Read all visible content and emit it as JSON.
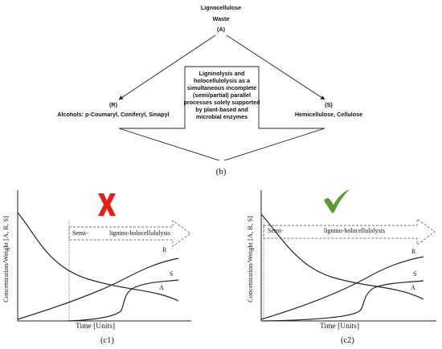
{
  "top": {
    "title_line1": "Lignocellulose",
    "title_line2": "Waste",
    "label_a": "(A)",
    "label_r": "(R)",
    "alcohols": "Alcohols: p-Coumaryl, Coniferyl, Sinapyl",
    "label_s": "(S)",
    "hemicellulose": "Hemicellulose, Cellulose",
    "center_lines": [
      "Ligninolysis and",
      "holocellulolysis as a",
      "simultaneous incomplete",
      "(semi/partial) parallel",
      "processes solely supported",
      "by plant-based and",
      "microbial enzymes"
    ],
    "caption": "(b)"
  },
  "panels": [
    {
      "id": "c1",
      "ylabel": "Concentration/Weight [A, R, S]",
      "xlabel": "Time [Units]",
      "caption": "(c1)",
      "marker": "cross-icon",
      "marker_color": "#e32119",
      "arrow_label_1": "Semi-",
      "arrow_label_2": "lignino-holocellulolysis",
      "curve_labels": [
        "R",
        "S",
        "A"
      ]
    },
    {
      "id": "c2",
      "ylabel": "Concentration/Weight [A, R, S]",
      "xlabel": "Time [Units]",
      "caption": "(c2)",
      "marker": "checkmark-icon",
      "marker_color": "#5a9b32",
      "arrow_label_1": "Semi-",
      "arrow_label_2": "lignino-holocellulolysis",
      "curve_labels": [
        "R",
        "S",
        "A"
      ]
    }
  ]
}
